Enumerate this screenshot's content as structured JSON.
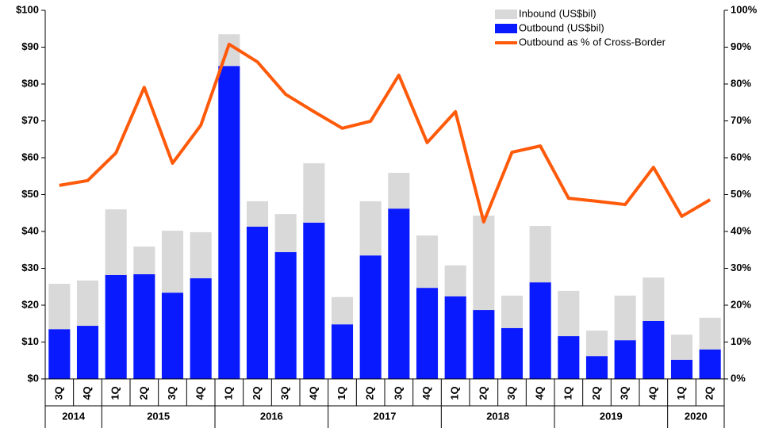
{
  "chart_data": {
    "type": "bar",
    "groups": [
      {
        "label": "2014",
        "categories": [
          "3Q",
          "4Q"
        ]
      },
      {
        "label": "2015",
        "categories": [
          "1Q",
          "2Q",
          "3Q",
          "4Q"
        ]
      },
      {
        "label": "2016",
        "categories": [
          "1Q",
          "2Q",
          "3Q",
          "4Q"
        ]
      },
      {
        "label": "2017",
        "categories": [
          "1Q",
          "2Q",
          "3Q",
          "4Q"
        ]
      },
      {
        "label": "2018",
        "categories": [
          "1Q",
          "2Q",
          "3Q",
          "4Q"
        ]
      },
      {
        "label": "2019",
        "categories": [
          "1Q",
          "2Q",
          "3Q",
          "4Q"
        ]
      },
      {
        "label": "2020",
        "categories": [
          "1Q",
          "2Q"
        ]
      }
    ],
    "series": [
      {
        "name": "Inbound (US$bil)",
        "color": "#d9d9d9",
        "type": "bar",
        "values": [
          12.3,
          12.3,
          17.8,
          7.5,
          16.8,
          12.5,
          8.6,
          6.9,
          10.3,
          16.1,
          7.4,
          14.7,
          9.7,
          14.2,
          8.4,
          25.6,
          8.8,
          15.3,
          12.3,
          6.9,
          12.1,
          11.8,
          6.8,
          8.6
        ]
      },
      {
        "name": "Outbound (US$bil)",
        "color": "#0a1aff",
        "type": "bar",
        "values": [
          13.5,
          14.4,
          28.2,
          28.4,
          23.4,
          27.3,
          84.9,
          41.3,
          34.4,
          42.4,
          14.8,
          33.5,
          46.2,
          24.7,
          22.4,
          18.7,
          13.8,
          26.2,
          11.6,
          6.2,
          10.5,
          15.7,
          5.2,
          8.0
        ]
      },
      {
        "name": "Outbound as % of Cross-Border",
        "color": "#ff5a0a",
        "type": "line",
        "axis": "y2",
        "values": [
          52.5,
          53.8,
          61.3,
          79.1,
          58.5,
          68.8,
          90.8,
          86.0,
          77.2,
          72.5,
          68.0,
          69.9,
          82.4,
          64.1,
          72.5,
          42.6,
          61.5,
          63.2,
          49.0,
          48.2,
          47.3,
          57.4,
          44.1,
          48.6
        ]
      }
    ],
    "stacked": true,
    "ylim": [
      0,
      100
    ],
    "yticks": [
      {
        "value": 0,
        "label": "$0"
      },
      {
        "value": 10,
        "label": "$10"
      },
      {
        "value": 20,
        "label": "$20"
      },
      {
        "value": 30,
        "label": "$30"
      },
      {
        "value": 40,
        "label": "$40"
      },
      {
        "value": 50,
        "label": "$50"
      },
      {
        "value": 60,
        "label": "$60"
      },
      {
        "value": 70,
        "label": "$70"
      },
      {
        "value": 80,
        "label": "$80"
      },
      {
        "value": 90,
        "label": "$90"
      },
      {
        "value": 100,
        "label": "$100"
      }
    ],
    "y2lim": [
      0,
      100
    ],
    "y2ticks": [
      {
        "value": 0,
        "label": "0%"
      },
      {
        "value": 10,
        "label": "10%"
      },
      {
        "value": 20,
        "label": "20%"
      },
      {
        "value": 30,
        "label": "30%"
      },
      {
        "value": 40,
        "label": "40%"
      },
      {
        "value": 50,
        "label": "50%"
      },
      {
        "value": 60,
        "label": "60%"
      },
      {
        "value": 70,
        "label": "70%"
      },
      {
        "value": 80,
        "label": "80%"
      },
      {
        "value": 90,
        "label": "90%"
      },
      {
        "value": 100,
        "label": "100%"
      }
    ],
    "grid": false,
    "legend": "top-right"
  }
}
